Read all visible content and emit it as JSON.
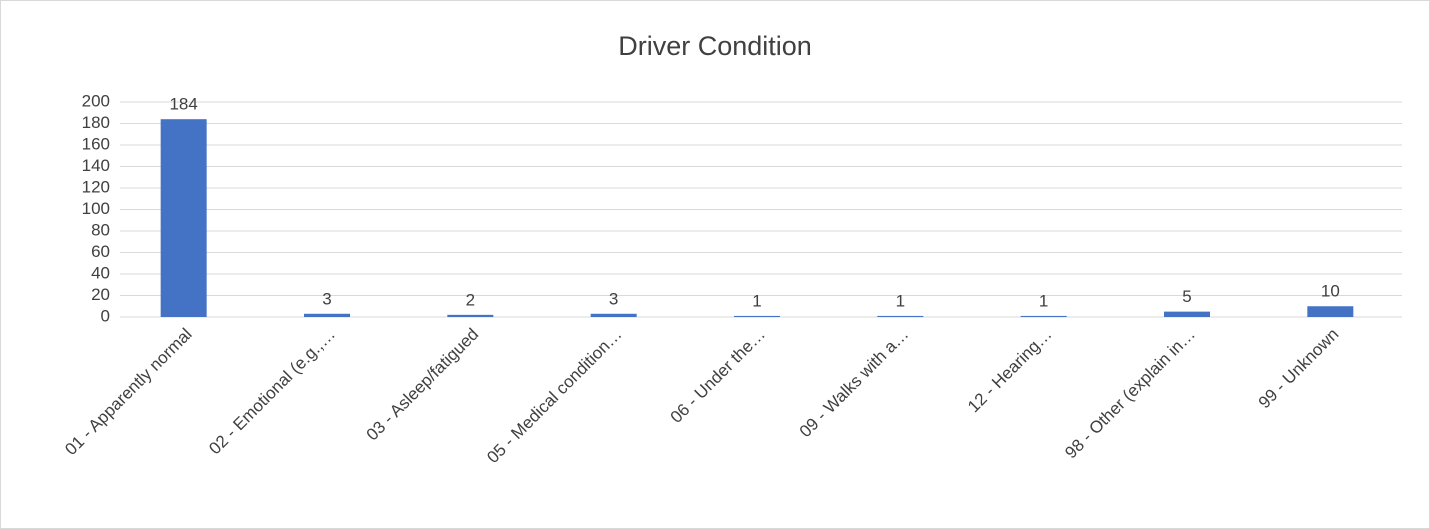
{
  "chart_data": {
    "type": "bar",
    "title": "Driver Condition",
    "categories": [
      "01 - Apparently normal",
      "02 - Emotional (e.g.,…",
      "03 - Asleep/fatigued",
      "05 - Medical condition…",
      "06 - Under the…",
      "09 - Walks with a…",
      "12 - Hearing…",
      "98 - Other (explain in…",
      "99 - Unknown"
    ],
    "values": [
      184,
      3,
      2,
      3,
      1,
      1,
      1,
      5,
      10
    ],
    "color": "#4472c4",
    "ylim": [
      0,
      200
    ],
    "yticks": [
      0,
      20,
      40,
      60,
      80,
      100,
      120,
      140,
      160,
      180,
      200
    ],
    "grid": true
  }
}
